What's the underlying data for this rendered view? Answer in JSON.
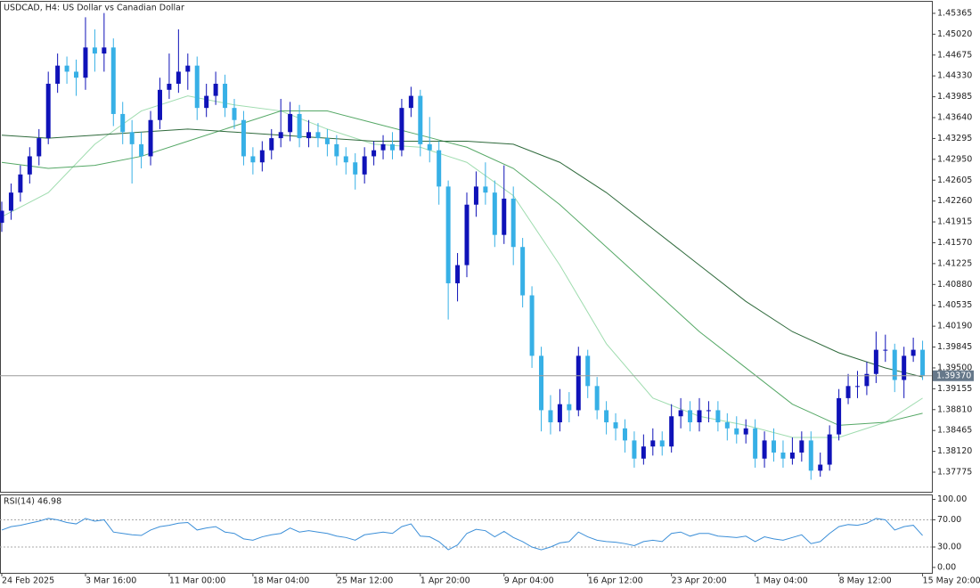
{
  "chart_data": [
    {
      "type": "candlestick",
      "title": "USDCAD, H4:  US Dollar vs Canadian Dollar",
      "categories": [
        "24 Feb 2025",
        null,
        null,
        null,
        null,
        null,
        null,
        null,
        null,
        "3 Mar 16:00",
        null,
        null,
        null,
        null,
        null,
        null,
        null,
        null,
        "11 Mar 00:00",
        null,
        null,
        null,
        null,
        null,
        null,
        null,
        null,
        "18 Mar 04:00",
        null,
        null,
        null,
        null,
        null,
        null,
        null,
        null,
        "25 Mar 12:00",
        null,
        null,
        null,
        null,
        null,
        null,
        null,
        null,
        "1 Apr 20:00",
        null,
        null,
        null,
        null,
        null,
        null,
        null,
        null,
        "9 Apr 04:00",
        null,
        null,
        null,
        null,
        null,
        null,
        null,
        null,
        "16 Apr 12:00",
        null,
        null,
        null,
        null,
        null,
        null,
        null,
        null,
        "23 Apr 20:00",
        null,
        null,
        null,
        null,
        null,
        null,
        null,
        null,
        "1 May 04:00",
        null,
        null,
        null,
        null,
        null,
        null,
        null,
        null,
        "8 May 12:00",
        null,
        null,
        null,
        null,
        null,
        null,
        null,
        null,
        "15 May 20:00"
      ],
      "open": [
        1.419,
        1.421,
        1.424,
        1.427,
        1.43,
        1.433,
        1.442,
        1.445,
        1.444,
        1.443,
        1.448,
        1.447,
        1.448,
        1.437,
        1.434,
        1.432,
        1.43,
        1.436,
        1.441,
        1.442,
        1.444,
        1.445,
        1.438,
        1.44,
        1.442,
        1.438,
        1.436,
        1.43,
        1.429,
        1.431,
        1.433,
        1.434,
        1.437,
        1.433,
        1.434,
        1.433,
        1.432,
        1.43,
        1.429,
        1.427,
        1.43,
        1.431,
        1.432,
        1.431,
        1.438,
        1.44,
        1.432,
        1.431,
        1.425,
        1.409,
        1.412,
        1.422,
        1.425,
        1.424,
        1.417,
        1.423,
        1.415,
        1.407,
        1.397,
        1.388,
        1.386,
        1.389,
        1.388,
        1.397,
        1.392,
        1.388,
        1.386,
        1.385,
        1.383,
        1.38,
        1.382,
        1.383,
        1.382,
        1.387,
        1.388,
        1.386,
        1.388,
        1.388,
        1.386,
        1.385,
        1.384,
        1.385,
        1.38,
        1.383,
        1.381,
        1.38,
        1.381,
        1.383,
        1.378,
        1.379,
        1.384,
        1.39,
        1.392,
        1.392,
        1.394,
        1.398,
        1.398,
        1.393,
        1.397,
        1.398
      ],
      "high": [
        1.4225,
        1.4255,
        1.4285,
        1.4315,
        1.4345,
        1.444,
        1.447,
        1.4465,
        1.446,
        1.453,
        1.451,
        1.4537,
        1.4495,
        1.439,
        1.436,
        1.434,
        1.4375,
        1.443,
        1.447,
        1.451,
        1.447,
        1.4465,
        1.442,
        1.444,
        1.4435,
        1.4395,
        1.4375,
        1.4315,
        1.4325,
        1.4345,
        1.4395,
        1.439,
        1.4385,
        1.436,
        1.4355,
        1.4345,
        1.4335,
        1.4315,
        1.4305,
        1.4315,
        1.4325,
        1.4335,
        1.434,
        1.4395,
        1.4415,
        1.441,
        1.4365,
        1.4325,
        1.426,
        1.414,
        1.424,
        1.4275,
        1.429,
        1.426,
        1.4285,
        1.425,
        1.4165,
        1.4085,
        1.3985,
        1.3905,
        1.3915,
        1.391,
        1.3985,
        1.398,
        1.3935,
        1.3895,
        1.3875,
        1.3865,
        1.3845,
        1.384,
        1.385,
        1.3845,
        1.389,
        1.39,
        1.3895,
        1.39,
        1.3895,
        1.3895,
        1.3875,
        1.387,
        1.3865,
        1.3865,
        1.3845,
        1.385,
        1.383,
        1.3835,
        1.3845,
        1.3845,
        1.381,
        1.3855,
        1.3915,
        1.394,
        1.3945,
        1.396,
        1.401,
        1.4005,
        1.399,
        1.3985,
        1.4,
        1.3995
      ],
      "low": [
        1.4175,
        1.4195,
        1.4225,
        1.4255,
        1.4285,
        1.432,
        1.4405,
        1.442,
        1.44,
        1.441,
        1.444,
        1.444,
        1.435,
        1.432,
        1.4255,
        1.428,
        1.4285,
        1.4345,
        1.4395,
        1.4405,
        1.441,
        1.436,
        1.4365,
        1.4385,
        1.4365,
        1.4345,
        1.4285,
        1.427,
        1.4275,
        1.4295,
        1.4315,
        1.4325,
        1.4315,
        1.4315,
        1.4315,
        1.43,
        1.4285,
        1.427,
        1.4245,
        1.4255,
        1.4285,
        1.4295,
        1.4295,
        1.43,
        1.4365,
        1.43,
        1.429,
        1.422,
        1.403,
        1.406,
        1.41,
        1.42,
        1.422,
        1.415,
        1.4155,
        1.412,
        1.405,
        1.395,
        1.3845,
        1.384,
        1.3845,
        1.386,
        1.387,
        1.39,
        1.3865,
        1.384,
        1.383,
        1.381,
        1.3785,
        1.379,
        1.3805,
        1.3805,
        1.381,
        1.385,
        1.3845,
        1.3845,
        1.386,
        1.3845,
        1.383,
        1.3825,
        1.3825,
        1.3785,
        1.3785,
        1.3795,
        1.3785,
        1.379,
        1.3795,
        1.3765,
        1.377,
        1.378,
        1.383,
        1.389,
        1.39,
        1.3905,
        1.3925,
        1.396,
        1.391,
        1.39,
        1.396,
        1.393
      ],
      "close": [
        1.421,
        1.424,
        1.427,
        1.43,
        1.433,
        1.442,
        1.445,
        1.444,
        1.443,
        1.448,
        1.447,
        1.448,
        1.437,
        1.434,
        1.432,
        1.43,
        1.436,
        1.441,
        1.442,
        1.444,
        1.445,
        1.438,
        1.44,
        1.442,
        1.438,
        1.436,
        1.43,
        1.429,
        1.431,
        1.433,
        1.434,
        1.437,
        1.433,
        1.434,
        1.433,
        1.432,
        1.43,
        1.429,
        1.427,
        1.43,
        1.431,
        1.432,
        1.431,
        1.438,
        1.44,
        1.432,
        1.431,
        1.425,
        1.409,
        1.412,
        1.422,
        1.425,
        1.424,
        1.417,
        1.423,
        1.415,
        1.407,
        1.397,
        1.388,
        1.386,
        1.389,
        1.388,
        1.397,
        1.392,
        1.388,
        1.386,
        1.385,
        1.383,
        1.38,
        1.382,
        1.383,
        1.382,
        1.387,
        1.388,
        1.386,
        1.388,
        1.388,
        1.386,
        1.385,
        1.384,
        1.385,
        1.38,
        1.383,
        1.381,
        1.38,
        1.381,
        1.383,
        1.378,
        1.379,
        1.384,
        1.39,
        1.392,
        1.392,
        1.394,
        1.398,
        1.398,
        1.393,
        1.397,
        1.398,
        1.3937
      ],
      "up_color": "#0f12b8",
      "down_color": "#37b0e6",
      "overlays": [
        {
          "color": "#9fdcaf",
          "x": [
            0,
            5,
            10,
            15,
            20,
            25,
            30,
            35,
            40,
            45,
            50,
            55,
            60,
            65,
            70,
            75,
            80,
            85,
            90,
            95,
            99
          ],
          "values": [
            1.42,
            1.424,
            1.432,
            1.4375,
            1.44,
            1.4385,
            1.4375,
            1.4345,
            1.432,
            1.4315,
            1.429,
            1.4235,
            1.412,
            1.399,
            1.39,
            1.387,
            1.3855,
            1.3835,
            1.3835,
            1.386,
            1.39
          ]
        },
        {
          "color": "#55a866",
          "x": [
            0,
            5,
            10,
            15,
            20,
            25,
            30,
            35,
            40,
            45,
            50,
            55,
            60,
            65,
            70,
            75,
            80,
            85,
            90,
            95,
            99
          ],
          "values": [
            1.429,
            1.428,
            1.4285,
            1.43,
            1.4325,
            1.435,
            1.4375,
            1.4375,
            1.4355,
            1.4335,
            1.4315,
            1.428,
            1.422,
            1.415,
            1.408,
            1.401,
            1.395,
            1.389,
            1.3855,
            1.386,
            1.3875
          ]
        },
        {
          "color": "#2f6a3c",
          "x": [
            0,
            5,
            10,
            15,
            20,
            25,
            30,
            35,
            40,
            45,
            50,
            55,
            60,
            65,
            70,
            75,
            80,
            85,
            90,
            95,
            99
          ],
          "values": [
            1.4335,
            1.433,
            1.4335,
            1.434,
            1.4345,
            1.434,
            1.4335,
            1.433,
            1.4325,
            1.4325,
            1.4325,
            1.432,
            1.429,
            1.424,
            1.418,
            1.412,
            1.406,
            1.401,
            1.3975,
            1.395,
            1.3935
          ]
        }
      ],
      "current_price": {
        "value": 1.3937,
        "label": "1.39370"
      },
      "ylim": [
        1.37451,
        1.45556
      ],
      "yticks": [
        1.45365,
        {
          "value": 1.4502,
          "label": "1.45020"
        },
        1.44675,
        {
          "value": 1.4433,
          "label": "1.44330"
        },
        1.43985,
        {
          "value": 1.4364,
          "label": "1.43640"
        },
        1.43295,
        {
          "value": 1.4295,
          "label": "1.42950"
        },
        1.42605,
        {
          "value": 1.4226,
          "label": "1.42260"
        },
        1.41915,
        {
          "value": 1.4157,
          "label": "1.41570"
        },
        1.41225,
        {
          "value": 1.4088,
          "label": "1.40880"
        },
        1.40535,
        {
          "value": 1.4019,
          "label": "1.40190"
        },
        1.39845,
        {
          "value": 1.395,
          "label": "1.39500"
        },
        1.39155,
        {
          "value": 1.3881,
          "label": "1.38810"
        },
        1.38465,
        {
          "value": 1.3812,
          "label": "1.38120"
        },
        1.37775
      ]
    },
    {
      "type": "line",
      "title": "RSI(14) 46.98",
      "color": "#3c8fd8",
      "values": [
        55,
        60,
        62,
        65,
        68,
        72,
        70,
        66,
        64,
        72,
        68,
        70,
        52,
        50,
        48,
        47,
        55,
        60,
        62,
        65,
        66,
        55,
        58,
        60,
        52,
        50,
        42,
        40,
        45,
        48,
        50,
        58,
        52,
        54,
        52,
        50,
        46,
        44,
        40,
        48,
        50,
        52,
        50,
        60,
        64,
        46,
        45,
        38,
        26,
        33,
        50,
        56,
        54,
        45,
        53,
        44,
        38,
        30,
        26,
        30,
        36,
        38,
        52,
        45,
        40,
        38,
        37,
        35,
        32,
        38,
        40,
        38,
        50,
        52,
        46,
        50,
        50,
        46,
        45,
        44,
        46,
        38,
        45,
        42,
        40,
        44,
        48,
        35,
        38,
        50,
        60,
        63,
        62,
        65,
        72,
        70,
        55,
        60,
        62,
        46.98
      ],
      "levels": [
        70,
        30
      ],
      "ylim": [
        -8,
        106
      ],
      "yticks": [
        {
          "value": 100,
          "label": "100.00"
        },
        {
          "value": 70,
          "label": "70.00"
        },
        {
          "value": 30,
          "label": "30.00"
        },
        {
          "value": 0,
          "label": "0.00"
        }
      ]
    }
  ]
}
